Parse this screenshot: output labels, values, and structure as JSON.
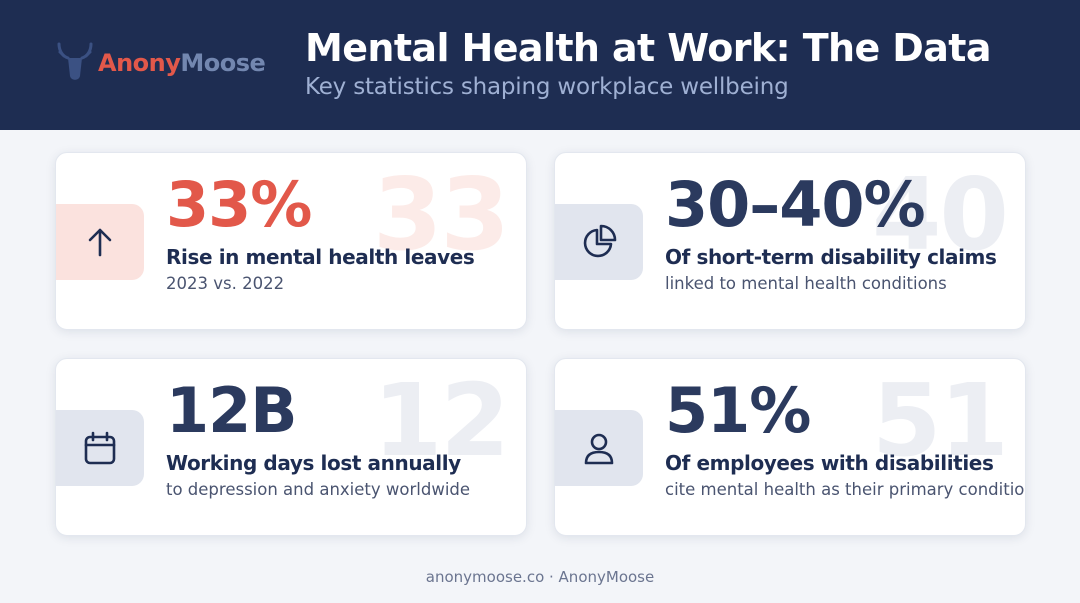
{
  "header": {
    "brand": {
      "part1": "Anony",
      "part2": "Moose"
    },
    "title": "Mental Health at Work: The Data",
    "subtitle": "Key statistics shaping workplace wellbeing"
  },
  "cards": [
    {
      "icon": "arrow-up-icon",
      "value": "33%",
      "ghost": "33",
      "label": "Rise in mental health leaves",
      "sub": "2023 vs. 2022",
      "accent": "#e2584a"
    },
    {
      "icon": "pie-chart-icon",
      "value": "30–40%",
      "ghost": "40",
      "label": "Of short-term disability claims",
      "sub": "linked to mental health conditions",
      "accent": "#2b3a5e"
    },
    {
      "icon": "calendar-icon",
      "value": "12B",
      "ghost": "12",
      "label": "Working days lost annually",
      "sub": "to depression and anxiety worldwide",
      "accent": "#2b3a5e"
    },
    {
      "icon": "user-icon",
      "value": "51%",
      "ghost": "51",
      "label": "Of employees with disabilities",
      "sub": "cite mental health as their primary condition",
      "accent": "#2b3a5e"
    }
  ],
  "footer": {
    "text": "anonymoose.co · AnonyMoose"
  },
  "colors": {
    "navy": "#1e2d52",
    "accent_red": "#e2584a",
    "background": "#f3f5f9"
  }
}
